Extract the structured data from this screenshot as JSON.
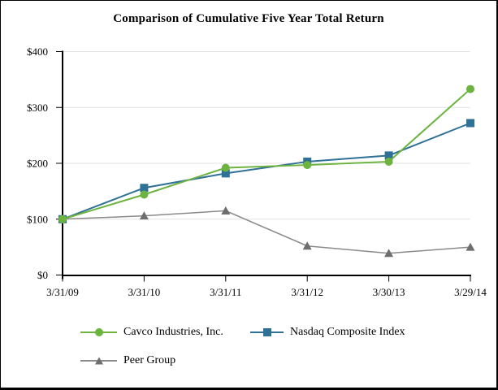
{
  "title": "Comparison of Cumulative Five Year Total Return",
  "colors": {
    "cavco_green": "#6CB33F",
    "nasdaq_blue": "#2E7096",
    "peer_gray_marker": "#6E6E6E",
    "peer_gray_line": "#8A8A8A",
    "gridline": "#E2E2E2",
    "axis": "#000000",
    "background": "#FFFFFF",
    "border": "#000000"
  },
  "chart_data": {
    "type": "line",
    "title": "Comparison of Cumulative Five Year Total Return",
    "categories": [
      "3/31/09",
      "3/31/10",
      "3/31/11",
      "3/31/12",
      "3/30/13",
      "3/29/14"
    ],
    "series": [
      {
        "name": "Cavco Industries, Inc.",
        "marker": "circle",
        "color": "#6CB33F",
        "line_width": 2,
        "values": [
          100,
          144,
          192,
          197,
          203,
          333
        ]
      },
      {
        "name": "Nasdaq Composite Index",
        "marker": "square",
        "color": "#2E7096",
        "line_width": 2,
        "values": [
          100,
          156,
          182,
          203,
          214,
          272
        ]
      },
      {
        "name": "Peer Group",
        "marker": "triangle",
        "color": "#6E6E6E",
        "line_color": "#8A8A8A",
        "line_width": 1.5,
        "values": [
          100,
          106,
          115,
          52,
          39,
          50
        ]
      }
    ],
    "xlabel": "",
    "ylabel": "",
    "ylim": [
      0,
      400
    ],
    "ytick_step": 100,
    "ytick_labels": [
      "$0",
      "$100",
      "$200",
      "$300",
      "$400"
    ],
    "grid": true,
    "legend_position": "bottom"
  }
}
